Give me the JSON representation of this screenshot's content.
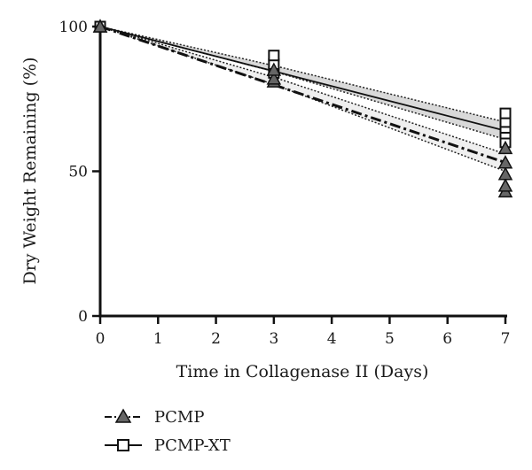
{
  "chart_data": {
    "type": "scatter",
    "xlabel": "Time in Collagenase II (Days)",
    "ylabel": "Dry Weight Remaining (%)",
    "xlim": [
      0,
      7
    ],
    "ylim": [
      0,
      100
    ],
    "x_ticks": [
      0,
      1,
      2,
      3,
      4,
      5,
      6,
      7
    ],
    "y_ticks": [
      0,
      50,
      100
    ],
    "grid": false,
    "legend_position": "bottom-left",
    "series": [
      {
        "name": "PCMP",
        "marker": "triangle",
        "line_style": "dash-dot",
        "color": "#555555",
        "points": [
          {
            "x": 0,
            "y": 100
          },
          {
            "x": 0,
            "y": 100
          },
          {
            "x": 3,
            "y": 81
          },
          {
            "x": 3,
            "y": 82
          },
          {
            "x": 3,
            "y": 85
          },
          {
            "x": 7,
            "y": 43
          },
          {
            "x": 7,
            "y": 45
          },
          {
            "x": 7,
            "y": 49
          },
          {
            "x": 7,
            "y": 53
          },
          {
            "x": 7,
            "y": 58
          }
        ],
        "fit": {
          "x": [
            0,
            7
          ],
          "y": [
            100,
            53
          ]
        },
        "ci_lower": {
          "x": [
            0,
            3,
            7
          ],
          "y": [
            100,
            80,
            50
          ]
        },
        "ci_upper": {
          "x": [
            0,
            3,
            7
          ],
          "y": [
            100,
            82.5,
            56
          ]
        }
      },
      {
        "name": "PCMP-XT",
        "marker": "square-open",
        "line_style": "solid",
        "color": "#555555",
        "points": [
          {
            "x": 0,
            "y": 100
          },
          {
            "x": 0,
            "y": 100
          },
          {
            "x": 3,
            "y": 84
          },
          {
            "x": 3,
            "y": 87
          },
          {
            "x": 3,
            "y": 90
          },
          {
            "x": 7,
            "y": 60
          },
          {
            "x": 7,
            "y": 63
          },
          {
            "x": 7,
            "y": 65
          },
          {
            "x": 7,
            "y": 67
          },
          {
            "x": 7,
            "y": 70
          }
        ],
        "fit": {
          "x": [
            0,
            7
          ],
          "y": [
            100,
            64
          ]
        },
        "ci_lower": {
          "x": [
            0,
            3,
            7
          ],
          "y": [
            100,
            84.5,
            61
          ]
        },
        "ci_upper": {
          "x": [
            0,
            3,
            7
          ],
          "y": [
            100,
            86.5,
            67
          ]
        }
      }
    ]
  }
}
